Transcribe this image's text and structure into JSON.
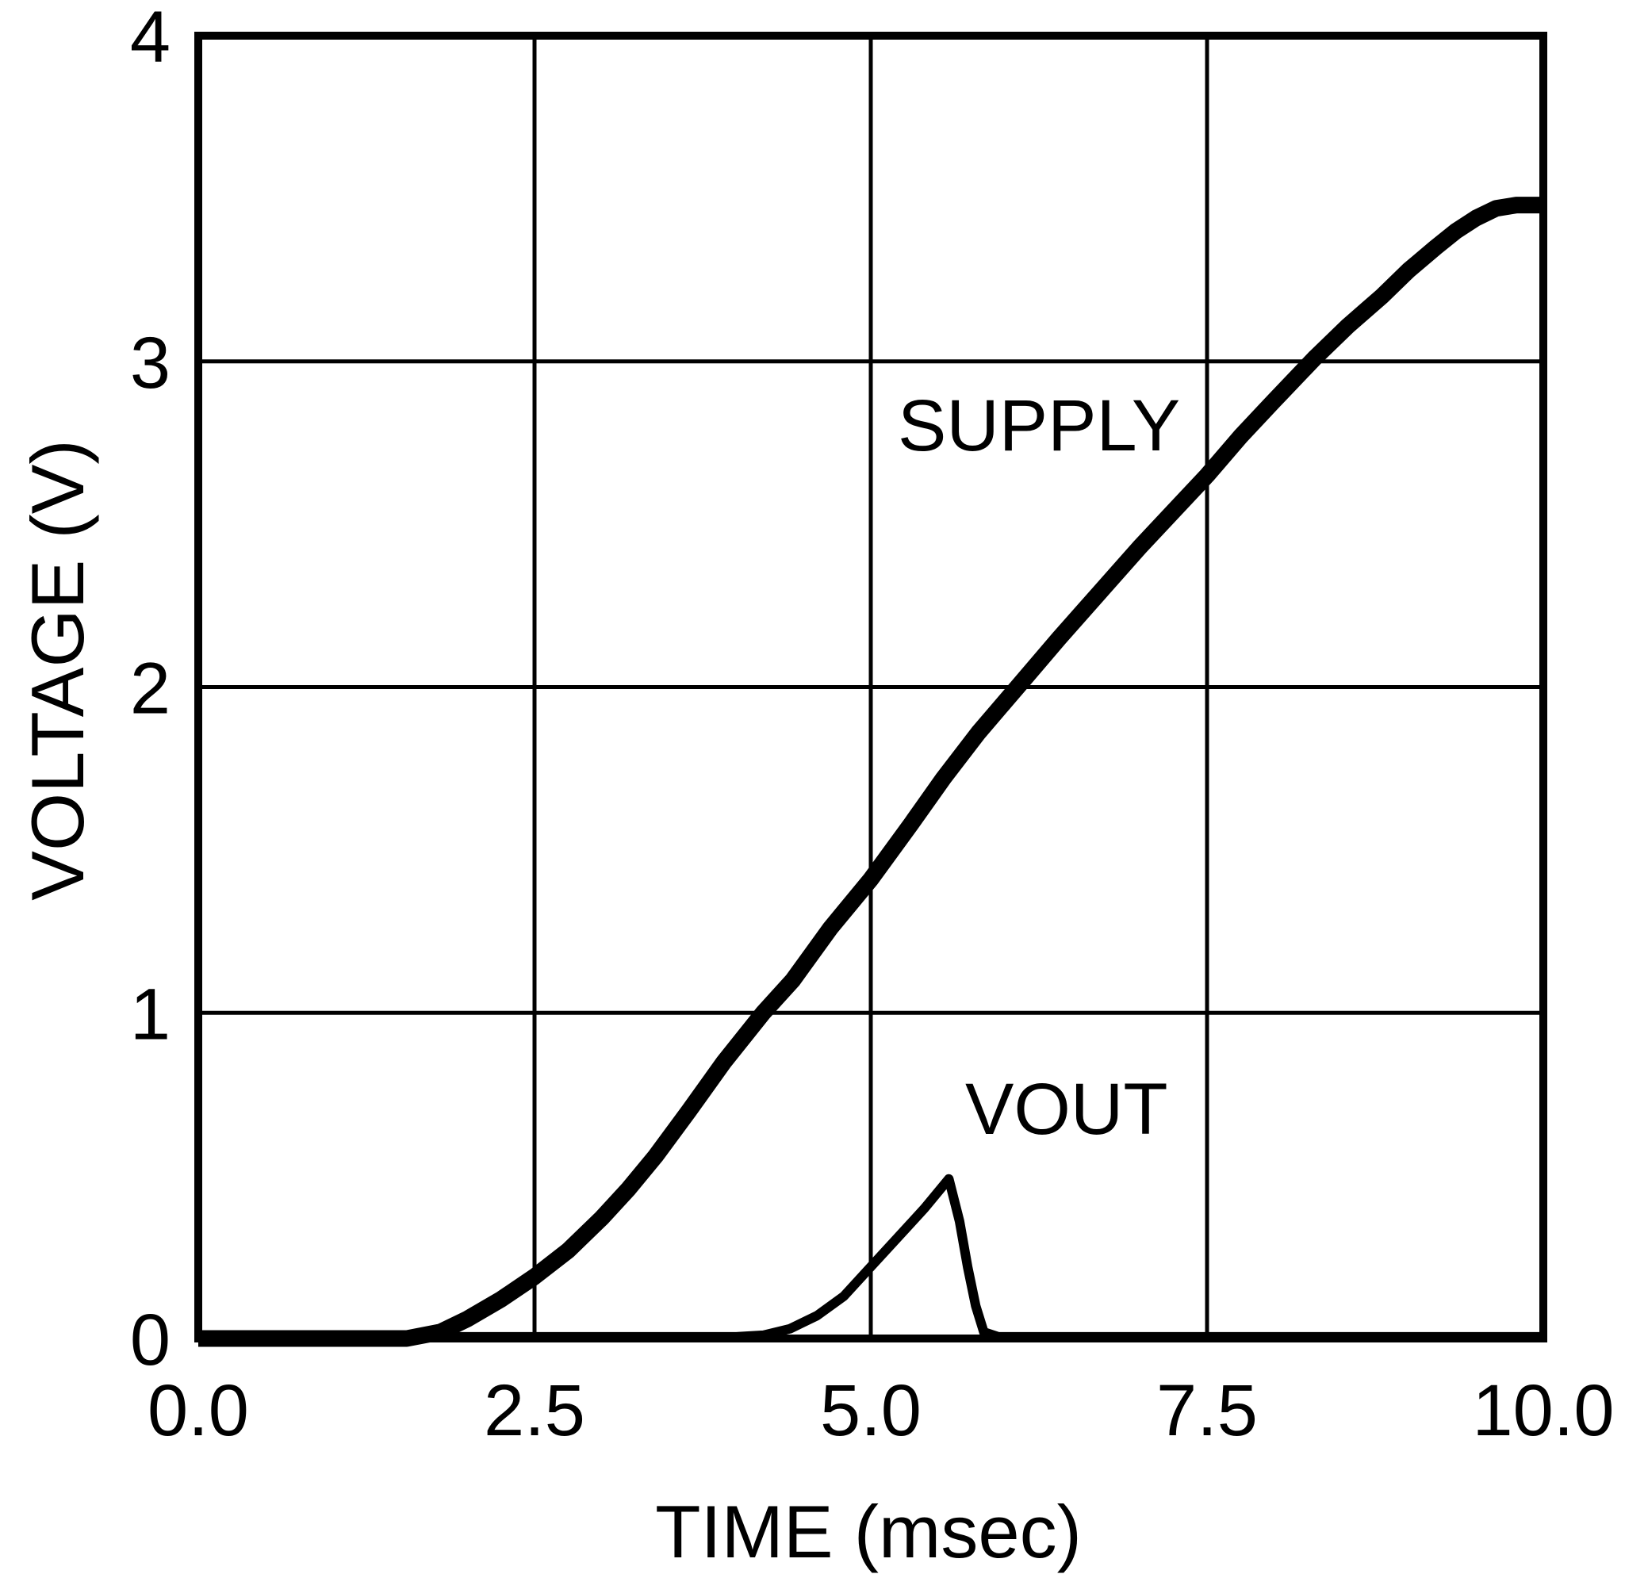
{
  "figure": {
    "background": "#ffffff",
    "ink_color": "#000000"
  },
  "chart_data": {
    "type": "line",
    "title": "",
    "xlabel": "TIME (msec)",
    "ylabel": "VOLTAGE (V)",
    "xlim": [
      0,
      10
    ],
    "ylim": [
      0,
      4
    ],
    "grid": true,
    "legend_position": "inline-annotations",
    "x_ticks": [
      {
        "value": 0,
        "label": "0.0"
      },
      {
        "value": 2.5,
        "label": "2.5"
      },
      {
        "value": 5,
        "label": "5.0"
      },
      {
        "value": 7.5,
        "label": "7.5"
      },
      {
        "value": 10,
        "label": "10.0"
      }
    ],
    "y_ticks": [
      {
        "value": 0,
        "label": "0"
      },
      {
        "value": 1,
        "label": "1"
      },
      {
        "value": 2,
        "label": "2"
      },
      {
        "value": 3,
        "label": "3"
      },
      {
        "value": 4,
        "label": "4"
      }
    ],
    "series": [
      {
        "name": "SUPPLY",
        "points": [
          [
            0,
            0
          ],
          [
            1.0,
            0
          ],
          [
            1.55,
            0
          ],
          [
            1.8,
            0.02
          ],
          [
            2.0,
            0.06
          ],
          [
            2.25,
            0.12
          ],
          [
            2.5,
            0.19
          ],
          [
            2.75,
            0.27
          ],
          [
            3.0,
            0.37
          ],
          [
            3.2,
            0.46
          ],
          [
            3.4,
            0.56
          ],
          [
            3.65,
            0.7
          ],
          [
            3.91,
            0.85
          ],
          [
            4.2,
            1.0
          ],
          [
            4.42,
            1.1
          ],
          [
            4.7,
            1.26
          ],
          [
            5.0,
            1.41
          ],
          [
            5.3,
            1.58
          ],
          [
            5.54,
            1.72
          ],
          [
            5.8,
            1.86
          ],
          [
            6.09,
            2.0
          ],
          [
            6.4,
            2.15
          ],
          [
            6.7,
            2.29
          ],
          [
            7.0,
            2.43
          ],
          [
            7.25,
            2.54
          ],
          [
            7.5,
            2.65
          ],
          [
            7.75,
            2.77
          ],
          [
            8.0,
            2.88
          ],
          [
            8.3,
            3.01
          ],
          [
            8.55,
            3.11
          ],
          [
            8.8,
            3.2
          ],
          [
            9.0,
            3.28
          ],
          [
            9.2,
            3.35
          ],
          [
            9.35,
            3.4
          ],
          [
            9.5,
            3.44
          ],
          [
            9.65,
            3.47
          ],
          [
            9.8,
            3.48
          ],
          [
            10,
            3.48
          ]
        ]
      },
      {
        "name": "VOUT",
        "points": [
          [
            0,
            0.005
          ],
          [
            4.0,
            0.005
          ],
          [
            4.2,
            0.01
          ],
          [
            4.4,
            0.03
          ],
          [
            4.6,
            0.07
          ],
          [
            4.8,
            0.13
          ],
          [
            5.0,
            0.22
          ],
          [
            5.2,
            0.31
          ],
          [
            5.4,
            0.4
          ],
          [
            5.58,
            0.49
          ],
          [
            5.66,
            0.36
          ],
          [
            5.72,
            0.22
          ],
          [
            5.78,
            0.1
          ],
          [
            5.84,
            0.02
          ],
          [
            5.95,
            0.005
          ],
          [
            10,
            0.005
          ]
        ]
      }
    ]
  }
}
